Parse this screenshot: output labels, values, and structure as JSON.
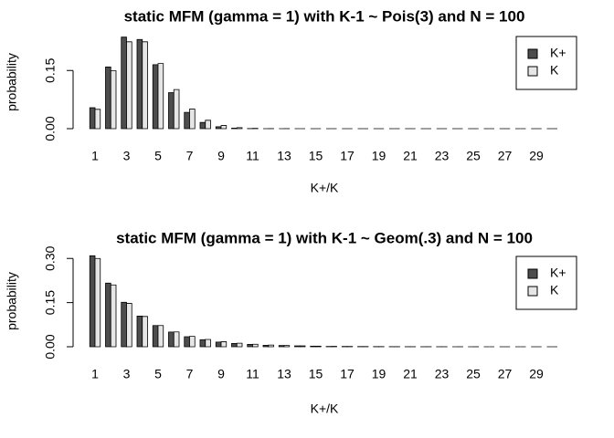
{
  "chart_data": [
    {
      "type": "bar",
      "title": "static MFM (gamma = 1) with K-1 ~ Pois(3) and N = 100",
      "x_label": "K+/K",
      "y_label": "probability",
      "categories": [
        1,
        null,
        3,
        null,
        5,
        null,
        7,
        null,
        9,
        null,
        11,
        null,
        13,
        null,
        15,
        null,
        17,
        null,
        19,
        null,
        21,
        null,
        23,
        null,
        25,
        null,
        27,
        null,
        29,
        null
      ],
      "series": [
        {
          "name": "K+",
          "color": "#4d4d4d",
          "values": [
            0.054,
            0.159,
            0.236,
            0.23,
            0.165,
            0.093,
            0.042,
            0.016,
            0.005,
            0.0013,
            0.0003,
            0,
            0,
            0,
            0,
            0,
            0,
            0,
            0,
            0,
            0,
            0,
            0,
            0,
            0,
            0,
            0,
            0,
            0,
            0
          ]
        },
        {
          "name": "K",
          "color": "#e6e6e6",
          "values": [
            0.0498,
            0.1494,
            0.224,
            0.224,
            0.168,
            0.1008,
            0.0504,
            0.0216,
            0.0081,
            0.0027,
            0.0008,
            0.0002,
            0.0001,
            0,
            0,
            0,
            0,
            0,
            0,
            0,
            0,
            0,
            0,
            0,
            0,
            0,
            0,
            0,
            0,
            0
          ]
        }
      ],
      "ylim": [
        0,
        0.24
      ],
      "yticks": [
        {
          "value": 0,
          "label": "0.00"
        },
        {
          "value": 0.15,
          "label": "0.15"
        }
      ],
      "legend": "topright"
    },
    {
      "type": "bar",
      "title": "static MFM (gamma = 1) with K-1 ~ Geom(.3) and N = 100",
      "x_label": "K+/K",
      "y_label": "probability",
      "categories": [
        1,
        null,
        3,
        null,
        5,
        null,
        7,
        null,
        9,
        null,
        11,
        null,
        13,
        null,
        15,
        null,
        17,
        null,
        19,
        null,
        21,
        null,
        23,
        null,
        25,
        null,
        27,
        null,
        29,
        null
      ],
      "series": [
        {
          "name": "K+",
          "color": "#4d4d4d",
          "values": [
            0.309,
            0.216,
            0.151,
            0.104,
            0.072,
            0.05,
            0.034,
            0.024,
            0.016,
            0.011,
            0.008,
            0.005,
            0.004,
            0.003,
            0.002,
            0.001,
            0.001,
            0.0007,
            0.0005,
            0.0003,
            0.0002,
            0.0001,
            0.0001,
            0,
            0,
            0,
            0,
            0,
            0,
            0
          ]
        },
        {
          "name": "K",
          "color": "#e6e6e6",
          "values": [
            0.3,
            0.21,
            0.147,
            0.1029,
            0.072,
            0.0504,
            0.0353,
            0.0247,
            0.0173,
            0.0121,
            0.0085,
            0.0059,
            0.0042,
            0.0029,
            0.002,
            0.0014,
            0.001,
            0.0007,
            0.0005,
            0.0003,
            0.0002,
            0.0002,
            0.0001,
            0.0001,
            0.0001,
            0,
            0,
            0,
            0,
            0
          ]
        }
      ],
      "ylim": [
        0,
        0.31
      ],
      "yticks": [
        {
          "value": 0,
          "label": "0.00"
        },
        {
          "value": 0.15,
          "label": "0.15"
        },
        {
          "value": 0.3,
          "label": "0.30"
        }
      ],
      "legend": "topright"
    }
  ]
}
